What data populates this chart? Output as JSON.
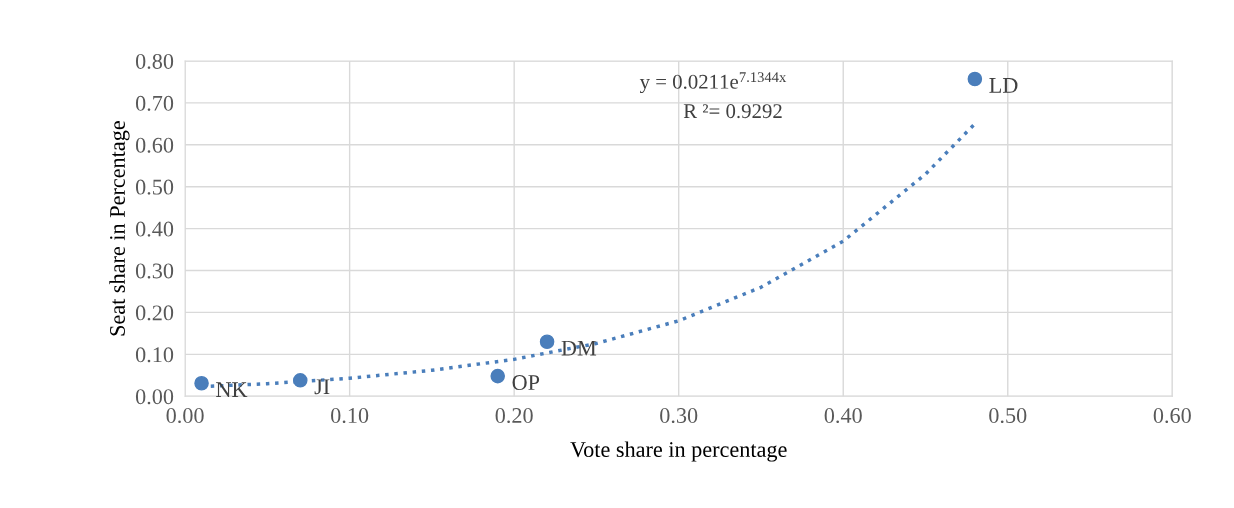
{
  "chart_data": {
    "type": "scatter",
    "xlabel": "Vote share in percentage",
    "ylabel": "Seat share in Percentage",
    "series": [
      {
        "color": "#4a7ebb",
        "x": [
          0.01,
          0.07,
          0.19,
          0.22,
          0.48
        ],
        "values": [
          0.031,
          0.038,
          0.048,
          0.13,
          0.757
        ],
        "marker": "circle"
      },
      {
        "type": "line",
        "color": "#4a7ebb",
        "line_style": "dotted",
        "marker": "none",
        "x": [
          0.01,
          0.05,
          0.1,
          0.15,
          0.2,
          0.25,
          0.3,
          0.35,
          0.4,
          0.45,
          0.48
        ],
        "values": [
          0.023,
          0.03,
          0.043,
          0.062,
          0.088,
          0.126,
          0.18,
          0.26,
          0.37,
          0.53,
          0.65
        ]
      }
    ],
    "annotations": [
      {
        "text": "NK",
        "x": 0.01,
        "y": 0.031
      },
      {
        "text": "JI",
        "x": 0.07,
        "y": 0.038
      },
      {
        "text": "OP",
        "x": 0.19,
        "y": 0.048
      },
      {
        "text": "DM",
        "x": 0.22,
        "y": 0.13
      },
      {
        "text": "LD",
        "x": 0.48,
        "y": 0.757
      },
      "y = 0.0211e$^{7.1344x}$",
      "R ²= 0.9292"
    ],
    "xlim": [
      0,
      0.6
    ],
    "xticks": [
      {
        "value": 0,
        "label": "0.00"
      },
      {
        "value": 0.1,
        "label": "0.10"
      },
      {
        "value": 0.2,
        "label": "0.20"
      },
      {
        "value": 0.3,
        "label": "0.30"
      },
      {
        "value": 0.4,
        "label": "0.40"
      },
      {
        "value": 0.5,
        "label": "0.50"
      },
      {
        "value": 0.6,
        "label": "0.60"
      }
    ],
    "ylim": [
      0,
      0.8
    ],
    "yticks": [
      {
        "value": 0,
        "label": "0.00"
      },
      {
        "value": 0.1,
        "label": "0.10"
      },
      {
        "value": 0.2,
        "label": "0.20"
      },
      {
        "value": 0.3,
        "label": "0.30"
      },
      {
        "value": 0.4,
        "label": "0.40"
      },
      {
        "value": 0.5,
        "label": "0.50"
      },
      {
        "value": 0.6,
        "label": "0.60"
      },
      {
        "value": 0.7,
        "label": "0.70"
      },
      {
        "value": 0.8,
        "label": "0.80"
      }
    ],
    "grid": true,
    "legend": false
  }
}
